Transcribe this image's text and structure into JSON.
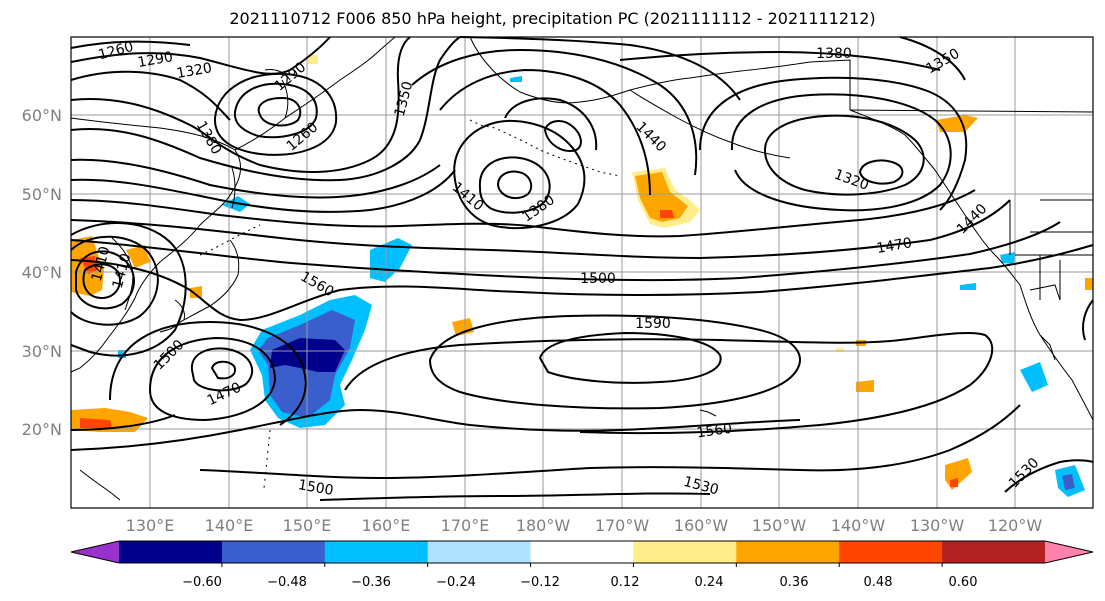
{
  "title": "2021110712 F006 850 hPa height, precipitation PC (2021111112 - 2021111212)",
  "lat_labels": [
    "60°N",
    "50°N",
    "40°N",
    "30°N",
    "20°N"
  ],
  "lon_labels": [
    "130°E",
    "140°E",
    "150°E",
    "160°E",
    "170°E",
    "180°W",
    "170°W",
    "160°W",
    "150°W",
    "140°W",
    "130°W",
    "120°W"
  ],
  "contour_labels": [
    "1260",
    "1290",
    "1320",
    "1290",
    "1260",
    "1380",
    "1350",
    "1380",
    "1350",
    "1440",
    "1410",
    "1380",
    "1320",
    "1470",
    "1440",
    "1410",
    "1410",
    "1560",
    "1500",
    "1590",
    "1500",
    "1470",
    "1560",
    "1530",
    "1500",
    "1530"
  ],
  "colorbar": {
    "tick_labels": [
      "−0.60",
      "−0.48",
      "−0.36",
      "−0.24",
      "−0.12",
      "0.12",
      "0.24",
      "0.36",
      "0.48",
      "0.60"
    ],
    "colors": [
      "#9932CC",
      "#00008B",
      "#3A5FCD",
      "#00BFFF",
      "#B0E2FF",
      "#FFFFFF",
      "#FFEC8B",
      "#FFA500",
      "#FF4500",
      "#B22222",
      "#FF82AB"
    ]
  }
}
